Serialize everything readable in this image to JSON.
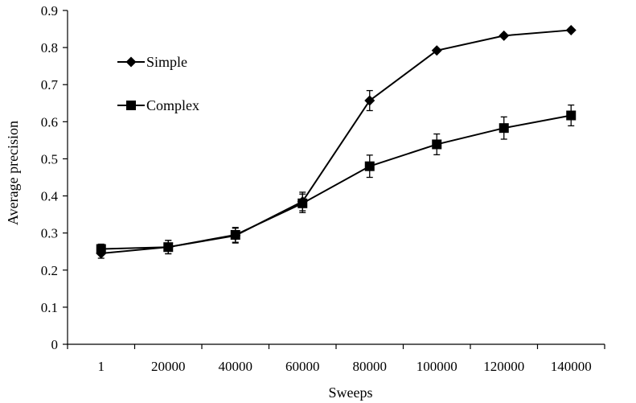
{
  "chart_data": {
    "type": "line",
    "xlabel": "Sweeps",
    "ylabel": "Average precision",
    "categories": [
      "1",
      "20000",
      "40000",
      "60000",
      "80000",
      "100000",
      "120000",
      "140000"
    ],
    "ylim": [
      0,
      0.9
    ],
    "yticks": [
      "0",
      "0.1",
      "0.2",
      "0.3",
      "0.4",
      "0.5",
      "0.6",
      "0.7",
      "0.8",
      "0.9"
    ],
    "grid": false,
    "legend_position": "top-left",
    "series": [
      {
        "name": "Simple",
        "marker": "diamond",
        "values": [
          0.245,
          0.262,
          0.293,
          0.385,
          0.657,
          0.792,
          0.832,
          0.847
        ],
        "errors": [
          0.013,
          0.018,
          0.02,
          0.025,
          0.027,
          0,
          0,
          0
        ]
      },
      {
        "name": "Complex",
        "marker": "square",
        "values": [
          0.257,
          0.262,
          0.295,
          0.38,
          0.48,
          0.539,
          0.583,
          0.617
        ],
        "errors": [
          0.013,
          0.018,
          0.02,
          0.025,
          0.03,
          0.028,
          0.03,
          0.028
        ]
      }
    ],
    "colors": {
      "line": "#000000",
      "background": "#ffffff"
    }
  }
}
